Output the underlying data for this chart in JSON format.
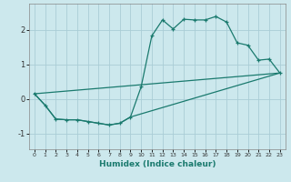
{
  "xlabel": "Humidex (Indice chaleur)",
  "background_color": "#cce8ed",
  "grid_color": "#aacdd6",
  "line_color": "#1a7a6e",
  "xlim": [
    -0.5,
    23.5
  ],
  "ylim": [
    -1.45,
    2.75
  ],
  "xticks": [
    0,
    1,
    2,
    3,
    4,
    5,
    6,
    7,
    8,
    9,
    10,
    11,
    12,
    13,
    14,
    15,
    16,
    17,
    18,
    19,
    20,
    21,
    22,
    23
  ],
  "yticks": [
    -1,
    0,
    1,
    2
  ],
  "curve1_x": [
    0,
    1,
    2,
    3,
    4,
    5,
    6,
    7,
    8,
    9,
    10,
    11,
    12,
    13,
    14,
    15,
    16,
    17,
    18,
    19,
    20,
    21,
    22,
    23
  ],
  "curve1_y": [
    0.15,
    -0.18,
    -0.58,
    -0.6,
    -0.6,
    -0.65,
    -0.7,
    -0.75,
    -0.7,
    -0.52,
    0.35,
    1.82,
    2.28,
    2.02,
    2.3,
    2.28,
    2.28,
    2.38,
    2.22,
    1.62,
    1.55,
    1.12,
    1.15,
    0.75
  ],
  "curve2_x": [
    0,
    23
  ],
  "curve2_y": [
    0.15,
    0.75
  ],
  "curve3_x": [
    0,
    1,
    2,
    3,
    4,
    5,
    6,
    7,
    8,
    9,
    23
  ],
  "curve3_y": [
    0.15,
    -0.18,
    -0.58,
    -0.6,
    -0.6,
    -0.65,
    -0.7,
    -0.75,
    -0.7,
    -0.52,
    0.75
  ]
}
